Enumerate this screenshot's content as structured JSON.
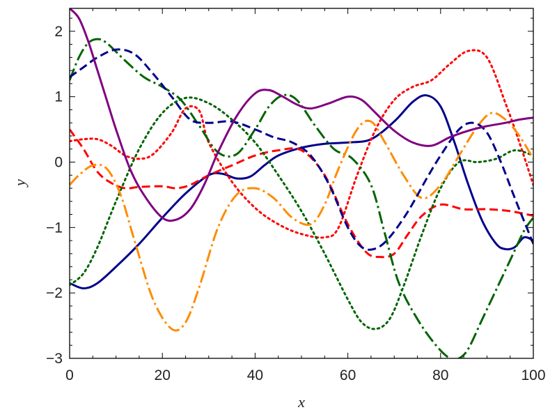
{
  "chart_data": {
    "type": "line",
    "title": "",
    "xlabel": "x",
    "ylabel": "y",
    "xlim": [
      0,
      100
    ],
    "ylim": [
      -3,
      2.35
    ],
    "xticks": [
      0,
      20,
      40,
      60,
      80,
      100
    ],
    "xtick_labels": [
      "0",
      "20",
      "40",
      "60",
      "80",
      "100"
    ],
    "yticks": [
      -3,
      -2,
      -1,
      0,
      1,
      2
    ],
    "ytick_labels": [
      "−3",
      "−2",
      "−1",
      "0",
      "1",
      "2"
    ],
    "grid": false,
    "legend": "none",
    "series": [
      {
        "color": "#00008b",
        "dash": "solid",
        "x": [
          0,
          3,
          6,
          10,
          15,
          20,
          25,
          30,
          33,
          36,
          39,
          42,
          45,
          50,
          55,
          60,
          65,
          70,
          74,
          77,
          80,
          83,
          86,
          89,
          92,
          94,
          96,
          98,
          100
        ],
        "y": [
          -1.85,
          -1.93,
          -1.85,
          -1.6,
          -1.25,
          -0.85,
          -0.48,
          -0.2,
          -0.18,
          -0.25,
          -0.22,
          -0.05,
          0.1,
          0.22,
          0.28,
          0.3,
          0.35,
          0.62,
          0.92,
          1.02,
          0.85,
          0.3,
          -0.35,
          -0.9,
          -1.25,
          -1.33,
          -1.3,
          -1.15,
          -1.2
        ]
      },
      {
        "color": "#ff0000",
        "dash": "dashed",
        "x": [
          0,
          3,
          6,
          9,
          12,
          15,
          20,
          23,
          26,
          30,
          35,
          40,
          45,
          50,
          55,
          60,
          64,
          67,
          70,
          73,
          76,
          80,
          85,
          90,
          95,
          100
        ],
        "y": [
          0.5,
          0.2,
          -0.15,
          -0.32,
          -0.4,
          -0.38,
          -0.37,
          -0.4,
          -0.35,
          -0.2,
          -0.05,
          0.1,
          0.18,
          0.18,
          -0.2,
          -0.95,
          -1.38,
          -1.45,
          -1.4,
          -1.1,
          -0.82,
          -0.65,
          -0.72,
          -0.72,
          -0.75,
          -0.82
        ]
      },
      {
        "color": "#ff0000",
        "dash": "dotted",
        "x": [
          0,
          3,
          6,
          9,
          12,
          15,
          18,
          22,
          25,
          28,
          30,
          35,
          40,
          45,
          50,
          55,
          58,
          62,
          66,
          70,
          74,
          78,
          82,
          86,
          90,
          94,
          97,
          100
        ],
        "y": [
          0.32,
          0.35,
          0.35,
          0.25,
          0.1,
          0.05,
          0.12,
          0.45,
          0.82,
          0.78,
          0.3,
          -0.3,
          -0.7,
          -0.95,
          -1.1,
          -1.15,
          -1.0,
          -0.2,
          0.5,
          0.95,
          1.15,
          1.25,
          1.5,
          1.7,
          1.6,
          0.9,
          0.3,
          -0.35
        ]
      },
      {
        "color": "#006400",
        "dash": "dashdot",
        "x": [
          0,
          2,
          4,
          6,
          8,
          12,
          16,
          20,
          24,
          28,
          32,
          36,
          40,
          43,
          46,
          49,
          53,
          57,
          61,
          65,
          68,
          71,
          75,
          79,
          82,
          84,
          86,
          89,
          92,
          95,
          98,
          100
        ],
        "y": [
          1.25,
          1.6,
          1.82,
          1.88,
          1.82,
          1.55,
          1.3,
          1.15,
          0.95,
          0.55,
          0.15,
          0.12,
          0.5,
          0.85,
          1.02,
          0.95,
          0.55,
          0.2,
          0.05,
          -0.35,
          -1.1,
          -1.85,
          -2.4,
          -2.8,
          -3.0,
          -3.0,
          -2.85,
          -2.4,
          -1.95,
          -1.5,
          -1.05,
          -0.85
        ]
      },
      {
        "color": "#006400",
        "dash": "dotted",
        "x": [
          0,
          3,
          6,
          10,
          15,
          20,
          25,
          30,
          35,
          40,
          45,
          50,
          55,
          60,
          63,
          66,
          69,
          72,
          76,
          80,
          84,
          88,
          92,
          96,
          100
        ],
        "y": [
          -1.88,
          -1.7,
          -1.3,
          -0.6,
          0.2,
          0.75,
          0.98,
          0.9,
          0.65,
          0.3,
          -0.2,
          -0.75,
          -1.4,
          -2.1,
          -2.45,
          -2.55,
          -2.4,
          -1.9,
          -1.1,
          -0.4,
          0.0,
          0.0,
          0.05,
          0.18,
          0.1
        ]
      },
      {
        "color": "#ff8c00",
        "dash": "dashdot",
        "x": [
          0,
          2,
          5,
          8,
          11,
          14,
          18,
          22,
          25,
          28,
          32,
          36,
          40,
          44,
          48,
          52,
          55,
          58,
          62,
          65,
          68,
          72,
          76,
          80,
          84,
          88,
          91,
          94,
          97,
          100
        ],
        "y": [
          -0.35,
          -0.2,
          -0.05,
          -0.1,
          -0.5,
          -1.2,
          -2.1,
          -2.55,
          -2.45,
          -1.9,
          -1.0,
          -0.5,
          -0.4,
          -0.55,
          -0.85,
          -0.95,
          -0.65,
          -0.1,
          0.5,
          0.62,
          0.3,
          -0.2,
          -0.55,
          -0.35,
          0.1,
          0.55,
          0.75,
          0.65,
          0.4,
          0.05
        ]
      },
      {
        "color": "#00008b",
        "dash": "dashed",
        "x": [
          0,
          3,
          6,
          10,
          14,
          18,
          22,
          26,
          30,
          35,
          40,
          44,
          48,
          52,
          56,
          60,
          63,
          66,
          69,
          73,
          77,
          80,
          84,
          87,
          90,
          93,
          96,
          100
        ],
        "y": [
          1.3,
          1.45,
          1.6,
          1.72,
          1.65,
          1.35,
          1.0,
          0.65,
          0.6,
          0.62,
          0.5,
          0.38,
          0.3,
          0.1,
          -0.35,
          -1.0,
          -1.3,
          -1.32,
          -1.15,
          -0.75,
          -0.25,
          0.1,
          0.5,
          0.6,
          0.45,
          0.0,
          -0.55,
          -1.25
        ]
      },
      {
        "color": "#800080",
        "dash": "solid",
        "x": [
          0,
          2,
          4,
          6,
          8,
          10,
          13,
          16,
          20,
          23,
          26,
          29,
          32,
          36,
          40,
          43,
          46,
          49,
          52,
          56,
          60,
          63,
          66,
          70,
          74,
          78,
          82,
          86,
          90,
          94,
          97,
          100
        ],
        "y": [
          2.35,
          2.2,
          1.85,
          1.4,
          0.95,
          0.5,
          -0.1,
          -0.5,
          -0.85,
          -0.88,
          -0.72,
          -0.35,
          0.15,
          0.7,
          1.05,
          1.1,
          1.0,
          0.88,
          0.82,
          0.9,
          1.0,
          0.95,
          0.75,
          0.48,
          0.3,
          0.25,
          0.38,
          0.48,
          0.55,
          0.6,
          0.65,
          0.68
        ]
      }
    ]
  }
}
